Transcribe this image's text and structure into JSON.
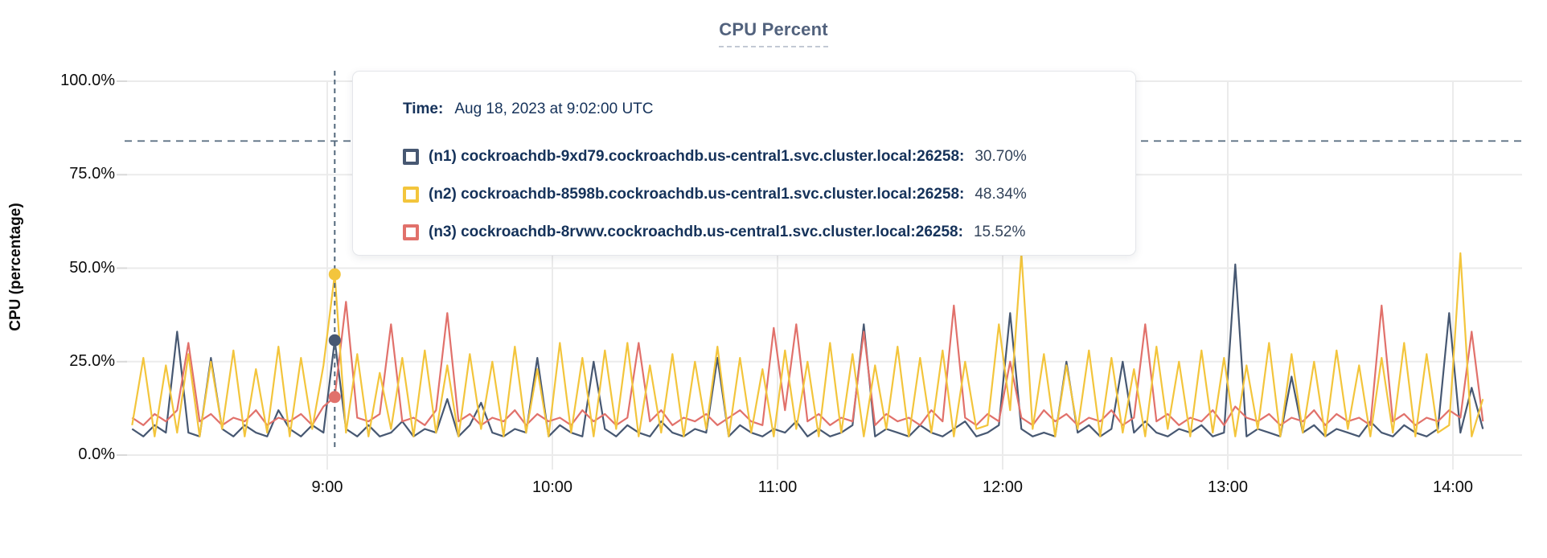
{
  "title": "CPU Percent",
  "axes": {
    "ylabel": "CPU (percentage)",
    "y_tick_labels": [
      "0.0%",
      "25.0%",
      "50.0%",
      "75.0%",
      "100.0%"
    ],
    "x_tick_labels": [
      "9:00",
      "10:00",
      "11:00",
      "12:00",
      "13:00",
      "14:00"
    ]
  },
  "tooltip": {
    "time_label": "Time:",
    "time_value": "Aug 18, 2023 at 9:02:00 UTC",
    "series": [
      {
        "name": "(n1) cockroachdb-9xd79.cockroachdb.us-central1.svc.cluster.local:26258:",
        "value": "30.70%",
        "color": "#475872"
      },
      {
        "name": "(n2) cockroachdb-8598b.cockroachdb.us-central1.svc.cluster.local:26258:",
        "value": "48.34%",
        "color": "#f3c53c"
      },
      {
        "name": "(n3) cockroachdb-8rvwv.cockroachdb.us-central1.svc.cluster.local:26258:",
        "value": "15.52%",
        "color": "#e1716b"
      }
    ]
  },
  "colors": {
    "grid": "#ebebeb",
    "tick_mark": "#d9d9d9",
    "dashed_guide": "#53687c",
    "title_text": "#52627d",
    "n1": "#475872",
    "n2": "#f3c53c",
    "n3": "#e1716b"
  },
  "chart_data": {
    "type": "line",
    "title": "CPU Percent",
    "xlabel": "",
    "ylabel": "CPU (percentage)",
    "ylim": [
      0,
      100
    ],
    "grid": true,
    "legend_position": "tooltip-overlay",
    "y_ticks_percent": [
      0,
      25,
      50,
      75,
      100
    ],
    "x_tick_minutes": [
      540,
      600,
      660,
      720,
      780,
      840
    ],
    "x_tick_labels": [
      "9:00",
      "10:00",
      "11:00",
      "12:00",
      "13:00",
      "14:00"
    ],
    "x_start_minute": 488,
    "x_step_minutes": 3,
    "hover_minute": 542,
    "hover_time_text": "Aug 18, 2023 at 9:02:00 UTC",
    "hover_values": [
      30.7,
      48.34,
      15.52
    ],
    "threshold_percent": 84,
    "series": [
      {
        "name": "(n1) cockroachdb-9xd79.cockroachdb.us-central1.svc.cluster.local:26258",
        "color": "#475872",
        "values": [
          7,
          5,
          8,
          6,
          33,
          6,
          5,
          26,
          7,
          5,
          8,
          6,
          5,
          12,
          7,
          5,
          8,
          6,
          30.7,
          7,
          5,
          8,
          5,
          6,
          9,
          5,
          7,
          6,
          15,
          5,
          8,
          14,
          6,
          5,
          7,
          6,
          26,
          5,
          8,
          6,
          5,
          25,
          7,
          5,
          8,
          6,
          5,
          9,
          6,
          5,
          7,
          6,
          26,
          5,
          8,
          6,
          5,
          7,
          6,
          9,
          5,
          7,
          5,
          6,
          8,
          35,
          5,
          7,
          6,
          5,
          8,
          6,
          5,
          7,
          9,
          5,
          6,
          8,
          38,
          7,
          5,
          6,
          5,
          25,
          6,
          8,
          5,
          7,
          25,
          6,
          9,
          6,
          5,
          7,
          6,
          8,
          5,
          6,
          51,
          5,
          7,
          6,
          5,
          21,
          6,
          8,
          5,
          7,
          6,
          5,
          9,
          6,
          5,
          8,
          6,
          5,
          7,
          38,
          6,
          18,
          7
        ]
      },
      {
        "name": "(n2) cockroachdb-8598b.cockroachdb.us-central1.svc.cluster.local:26258",
        "color": "#f3c53c",
        "values": [
          8,
          26,
          5,
          24,
          6,
          27,
          5,
          25,
          7,
          28,
          5,
          23,
          6,
          29,
          5,
          26,
          7,
          24,
          48.34,
          6,
          27,
          5,
          22,
          7,
          26,
          5,
          28,
          6,
          24,
          5,
          27,
          7,
          25,
          5,
          29,
          6,
          23,
          5,
          30,
          6,
          26,
          5,
          28,
          7,
          30,
          5,
          24,
          6,
          27,
          5,
          25,
          7,
          29,
          5,
          26,
          6,
          23,
          5,
          28,
          7,
          25,
          5,
          30,
          6,
          27,
          5,
          24,
          7,
          29,
          5,
          26,
          6,
          28,
          5,
          25,
          7,
          8,
          35,
          12,
          54,
          7,
          27,
          5,
          24,
          7,
          28,
          5,
          26,
          6,
          23,
          5,
          29,
          7,
          25,
          5,
          28,
          6,
          26,
          5,
          24,
          7,
          30,
          5,
          27,
          6,
          25,
          5,
          28,
          7,
          24,
          5,
          26,
          6,
          30,
          5,
          27,
          6,
          8,
          54,
          5,
          15
        ]
      },
      {
        "name": "(n3) cockroachdb-8rvwv.cockroachdb.us-central1.svc.cluster.local:26258",
        "color": "#e1716b",
        "values": [
          10,
          8,
          11,
          9,
          12,
          30,
          9,
          11,
          8,
          10,
          9,
          12,
          8,
          10,
          9,
          11,
          8,
          13,
          15.52,
          41,
          10,
          9,
          11,
          35,
          9,
          10,
          8,
          12,
          38,
          9,
          11,
          8,
          10,
          9,
          12,
          8,
          11,
          9,
          10,
          8,
          12,
          9,
          11,
          8,
          10,
          30,
          9,
          12,
          8,
          10,
          9,
          11,
          8,
          10,
          12,
          9,
          8,
          34,
          12,
          35,
          9,
          11,
          8,
          10,
          9,
          33,
          8,
          11,
          9,
          10,
          8,
          12,
          9,
          40,
          10,
          8,
          11,
          9,
          25,
          10,
          8,
          12,
          9,
          11,
          8,
          10,
          9,
          12,
          8,
          10,
          35,
          9,
          11,
          8,
          10,
          9,
          12,
          8,
          13,
          10,
          9,
          11,
          8,
          10,
          9,
          12,
          8,
          11,
          9,
          10,
          8,
          40,
          9,
          11,
          8,
          10,
          9,
          12,
          10,
          33,
          9
        ]
      }
    ]
  }
}
